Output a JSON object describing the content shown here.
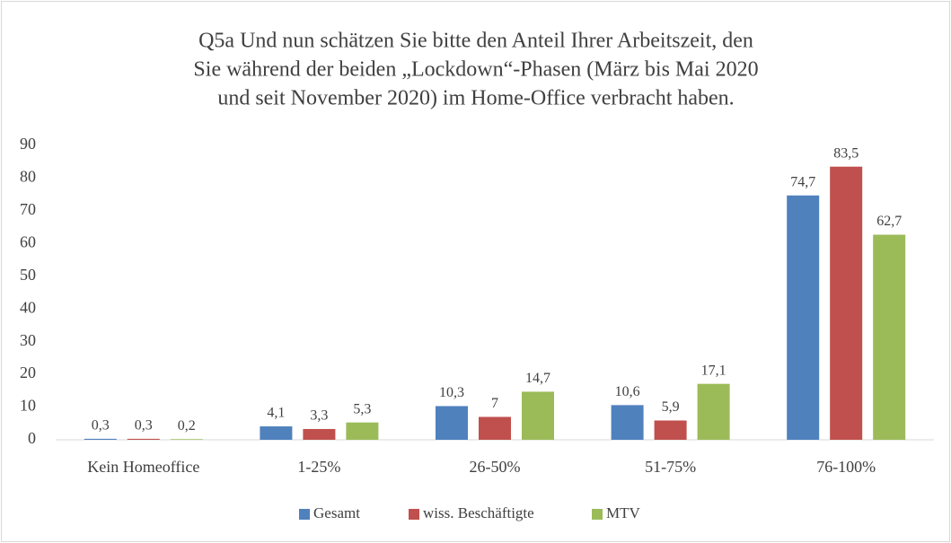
{
  "chart_data": {
    "type": "bar",
    "title": [
      "Q5a Und nun schätzen Sie bitte den Anteil Ihrer Arbeitszeit, den",
      "Sie während der beiden „Lockdown“-Phasen (März bis Mai 2020",
      "und seit November 2020) im Home-Office verbracht haben."
    ],
    "categories": [
      "Kein Homeoffice",
      "1-25%",
      "26-50%",
      "51-75%",
      "76-100%"
    ],
    "series": [
      {
        "name": "Gesamt",
        "color": "#4f81bd",
        "values": [
          0.3,
          4.1,
          10.3,
          10.6,
          74.7
        ],
        "value_labels": [
          "0,3",
          "4,1",
          "10,3",
          "10,6",
          "74,7"
        ]
      },
      {
        "name": "wiss. Beschäftigte",
        "color": "#c0504d",
        "values": [
          0.3,
          3.3,
          7,
          5.9,
          83.5
        ],
        "value_labels": [
          "0,3",
          "3,3",
          "7",
          "5,9",
          "83,5"
        ]
      },
      {
        "name": "MTV",
        "color": "#9bbb59",
        "values": [
          0.2,
          5.3,
          14.7,
          17.1,
          62.7
        ],
        "value_labels": [
          "0,2",
          "5,3",
          "14,7",
          "17,1",
          "62,7"
        ]
      }
    ],
    "ylim": [
      0,
      90
    ],
    "yticks": [
      0,
      10,
      20,
      30,
      40,
      50,
      60,
      70,
      80,
      90
    ],
    "grid": false,
    "legend": "bottom"
  }
}
